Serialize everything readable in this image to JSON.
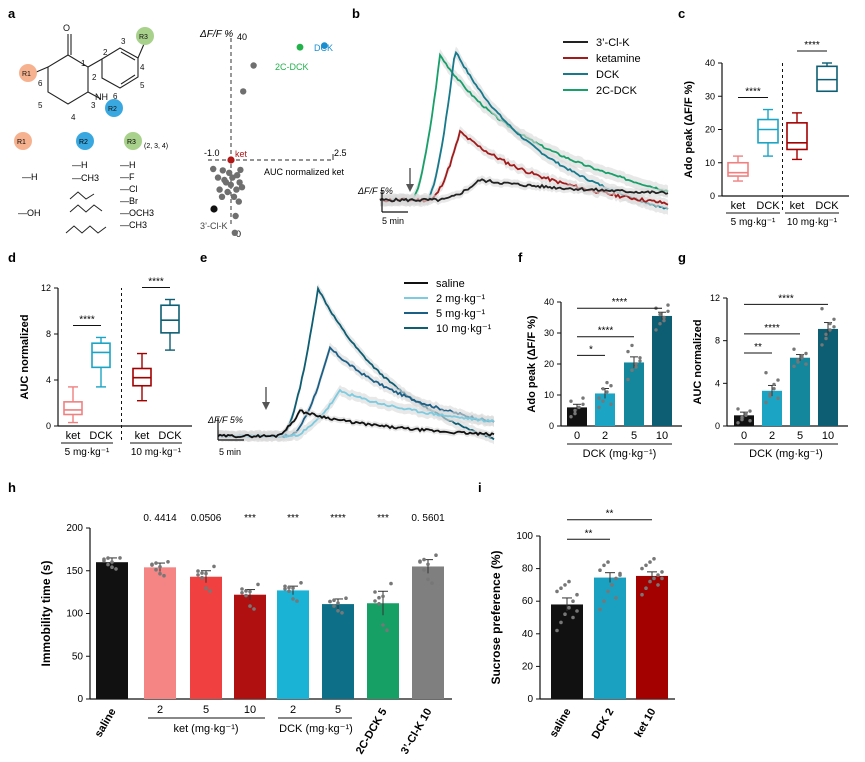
{
  "panel_labels": {
    "a": "a",
    "b": "b",
    "c": "c",
    "d": "d",
    "e": "e",
    "f": "f",
    "g": "g",
    "h": "h",
    "i": "i"
  },
  "colors": {
    "saline": "#111111",
    "ket5": "#f08080",
    "ket10": "#a30000",
    "ket": "#a31a1a",
    "dck": "#167a8c",
    "dck5": "#1ba4c4",
    "dck10": "#0d5e73",
    "dck2": "#7ccbe0",
    "tcdck": "#17a06a",
    "clk": "#8a8a8a",
    "green_pt": "#22b24c",
    "blue_pt": "#1a8fd0",
    "red_pt": "#b01818",
    "gray": "#777777"
  },
  "panel_a": {
    "struct_labels": {
      "o": "O",
      "nh": "NH",
      "n1": "1",
      "n2": "2",
      "n3": "3",
      "n4": "4",
      "n5": "5",
      "n6": "6",
      "p2": "2",
      "p3": "3",
      "p4": "4",
      "p5": "5",
      "p6": "6",
      "r1": "R1",
      "r2": "R2",
      "r3": "R3"
    },
    "legend_heads": {
      "r1": "R1",
      "r2": "R2",
      "r3": "R3",
      "r3_sub": "(2, 3, 4)"
    },
    "r1_options": [
      "—H",
      "—OH"
    ],
    "r2_options": [
      "—H",
      "—CH3",
      "",
      "",
      "",
      ""
    ],
    "r3_options": [
      "—H",
      "—F",
      "—Cl",
      "—Br",
      "—OCH3",
      "—CH3"
    ]
  },
  "scatter_a": {
    "type": "scatter",
    "ylabel": "ΔF/F %",
    "y_top_tick": "40",
    "y_bottom_tick": "0",
    "x_left_tick": "-1.0",
    "x_right_tick": "2.5",
    "xlabel": "AUC normalized ket",
    "labels": {
      "dck": "DCK",
      "tcdck": "2C-DCK",
      "ket": "ket",
      "clk": "3’-Cl-K"
    },
    "points_main": [
      [
        0.78,
        31
      ],
      [
        0.42,
        22.5
      ],
      [
        0.31,
        13.5
      ],
      [
        0.32,
        10
      ],
      [
        0.36,
        7
      ],
      [
        0.15,
        6
      ],
      [
        0.3,
        6
      ],
      [
        0.22,
        5
      ],
      [
        0.33,
        4.5
      ],
      [
        0.4,
        4
      ],
      [
        0.26,
        3.5
      ],
      [
        0.37,
        3
      ],
      [
        0.18,
        2.5
      ],
      [
        0.28,
        2
      ],
      [
        0.1,
        2
      ],
      [
        0.34,
        1.5
      ],
      [
        0.24,
        1
      ],
      [
        0.16,
        0.5
      ],
      [
        0.04,
        0.2
      ],
      [
        0.38,
        0.4
      ],
      [
        0.2,
        3
      ],
      [
        0.12,
        4.5
      ]
    ],
    "point_dck": [
      0.92,
      37.5
    ],
    "point_tcdck": [
      0.7,
      37
    ],
    "point_ket": [
      0.0,
      0.0
    ],
    "point_clk": [
      0.2,
      -1.5
    ]
  },
  "trace_b": {
    "type": "line",
    "legend": [
      "3’-Cl-K",
      "ketamine",
      "DCK",
      "2C-DCK"
    ],
    "scale_y": "ΔF/F 5%",
    "scale_x": "5 min"
  },
  "box_c": {
    "type": "box",
    "ylabel": "Ado peak (ΔF/F %)",
    "yticks": [
      "0",
      "10",
      "20",
      "30",
      "40"
    ],
    "groups": [
      {
        "label": "ket",
        "q1": 6,
        "median": 7,
        "q3": 10,
        "min": 4.5,
        "max": 12,
        "color": "#f08080"
      },
      {
        "label": "DCK",
        "q1": 16,
        "median": 20,
        "q3": 23,
        "min": 12,
        "max": 26,
        "color": "#1ba4c4"
      },
      {
        "label": "ket",
        "q1": 14,
        "median": 16,
        "q3": 22,
        "min": 11,
        "max": 25,
        "color": "#a30000"
      },
      {
        "label": "DCK",
        "q1": 31.5,
        "median": 35,
        "q3": 39,
        "min": 31.5,
        "max": 40,
        "color": "#0d5e73"
      }
    ],
    "sig_left": "****",
    "sig_right": "****",
    "dose_left": "5 mg·kg⁻¹",
    "dose_right": "10 mg·kg⁻¹"
  },
  "box_d": {
    "type": "box",
    "ylabel": "AUC normalized",
    "yticks": [
      "0",
      "4",
      "8",
      "12"
    ],
    "groups": [
      {
        "label": "ket",
        "q1": 1.0,
        "median": 1.4,
        "q3": 2.1,
        "min": 0.3,
        "max": 3.4,
        "color": "#f08080"
      },
      {
        "label": "DCK",
        "q1": 5.1,
        "median": 6.4,
        "q3": 7.2,
        "min": 3.4,
        "max": 7.7,
        "color": "#1ba4c4"
      },
      {
        "label": "ket",
        "q1": 3.5,
        "median": 4.2,
        "q3": 5.0,
        "min": 2.2,
        "max": 6.3,
        "color": "#a30000"
      },
      {
        "label": "DCK",
        "q1": 8.1,
        "median": 9.2,
        "q3": 10.5,
        "min": 6.6,
        "max": 11.0,
        "color": "#0d5e73"
      }
    ],
    "sig_left": "****",
    "sig_right": "****",
    "dose_left": "5 mg·kg⁻¹",
    "dose_right": "10 mg·kg⁻¹"
  },
  "trace_e": {
    "type": "line",
    "legend": [
      "saline",
      "2 mg·kg⁻¹",
      "5 mg·kg⁻¹",
      "10 mg·kg⁻¹"
    ],
    "scale_y": "ΔF/F 5%",
    "scale_x": "5 min"
  },
  "bar_f": {
    "type": "bar",
    "ylabel": "Ado peak (ΔF/F %)",
    "xlabel": "DCK (mg·kg⁻¹)",
    "categories": [
      "0",
      "2",
      "5",
      "10"
    ],
    "values": [
      6,
      10.5,
      20.5,
      35.5
    ],
    "errors": [
      1.0,
      1.6,
      1.8,
      1.2
    ],
    "yticks": [
      "0",
      "10",
      "20",
      "30",
      "40"
    ],
    "ylim": [
      0,
      40
    ],
    "colors": [
      "#111111",
      "#1ba4c4",
      "#15879d",
      "#0d5e73"
    ],
    "sig": [
      "*",
      "****",
      "****"
    ],
    "points": [
      [
        3,
        5,
        6,
        7,
        8,
        4,
        6,
        9
      ],
      [
        6,
        8,
        11,
        13,
        9,
        12,
        14,
        7
      ],
      [
        15,
        18,
        20,
        22,
        24,
        26,
        19,
        21
      ],
      [
        31,
        33,
        35,
        37,
        38,
        36,
        34,
        39
      ]
    ]
  },
  "bar_g": {
    "type": "bar",
    "ylabel": "AUC normalized",
    "xlabel": "DCK (mg·kg⁻¹)",
    "categories": [
      "0",
      "2",
      "5",
      "10"
    ],
    "values": [
      1.0,
      3.3,
      6.4,
      9.1
    ],
    "errors": [
      0.3,
      0.5,
      0.3,
      0.6
    ],
    "yticks": [
      "0",
      "4",
      "8",
      "12"
    ],
    "ylim": [
      0,
      12
    ],
    "colors": [
      "#111111",
      "#1ba4c4",
      "#15879d",
      "#0d5e73"
    ],
    "sig": [
      "**",
      "****",
      "****"
    ],
    "points": [
      [
        0.3,
        0.6,
        1.0,
        1.4,
        1.6,
        0.8,
        1.2,
        0.5
      ],
      [
        2.2,
        2.8,
        3.5,
        4.3,
        5.0,
        3.0,
        3.9,
        2.6
      ],
      [
        5.6,
        6.0,
        6.4,
        6.8,
        7.2,
        6.2,
        6.6,
        5.8
      ],
      [
        7.6,
        8.2,
        9.0,
        10.0,
        11.0,
        8.6,
        9.6,
        9.3
      ]
    ]
  },
  "bar_h": {
    "type": "bar",
    "ylabel": "Immobility time (s)",
    "categories": [
      "saline",
      "2",
      "5",
      "10",
      "2",
      "5",
      "2C-DCK 5",
      "3’-Cl-K 10"
    ],
    "group_labels": {
      "ket": "ket (mg·kg⁻¹)",
      "dck": "DCK (mg·kg⁻¹)"
    },
    "values": [
      160,
      154,
      143,
      122,
      127,
      111,
      112,
      155
    ],
    "errors": [
      5,
      5,
      7,
      6,
      5,
      6,
      14,
      8
    ],
    "yticks": [
      "0",
      "50",
      "100",
      "150",
      "200"
    ],
    "ylim": [
      0,
      200
    ],
    "colors": [
      "#111111",
      "#f58585",
      "#f04040",
      "#b01010",
      "#1ab3d6",
      "#0e6f88",
      "#16a066",
      "#7f7f7f"
    ],
    "pvals": [
      "",
      "0. 4414",
      "0.0506",
      "***",
      "***",
      "****",
      "***",
      "0. 5601"
    ]
  },
  "bar_i": {
    "type": "bar",
    "ylabel": "Sucrose preference (%)",
    "categories": [
      "saline",
      "DCK 2",
      "ket 10"
    ],
    "values": [
      58,
      74.5,
      75.5
    ],
    "errors": [
      4,
      3,
      2.5
    ],
    "yticks": [
      "0",
      "20",
      "40",
      "60",
      "80",
      "100"
    ],
    "ylim": [
      0,
      100
    ],
    "colors": [
      "#111111",
      "#1aa1c2",
      "#a30000"
    ],
    "sig": [
      "**",
      "**"
    ]
  }
}
